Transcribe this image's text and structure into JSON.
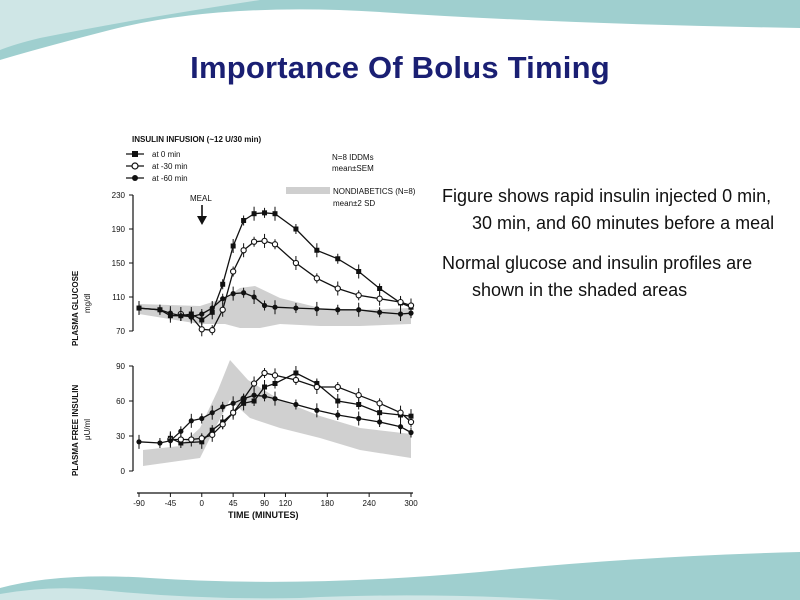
{
  "slide": {
    "title": "Importance Of Bolus Timing",
    "bullets": [
      "Figure shows rapid insulin injected 0 min, 30 min, and 60 minutes before a meal",
      "Normal glucose and insulin profiles are shown in the shaded areas"
    ],
    "colors": {
      "title": "#1a1f73",
      "band": "#9fcfcf",
      "band_light": "#cfe6e6"
    }
  },
  "chart_data": [
    {
      "type": "line",
      "panel": "top",
      "ylabel": "PLASMA GLUCOSE",
      "yunit": "mg/dl",
      "ylim": [
        70,
        230
      ],
      "yticks": [
        70,
        110,
        150,
        190,
        230
      ],
      "xlim": [
        -90,
        300
      ],
      "annotation": "MEAL",
      "legend_title": "INSULIN INFUSION (~12 U/30 min)",
      "stats_label": [
        "N=8 IDDMs",
        "mean±SEM"
      ],
      "shade_label": [
        "NONDIABETICS (N=8)",
        "mean±2 SD"
      ],
      "series": [
        {
          "name": "at 0 min",
          "marker": "square",
          "x": [
            -90,
            -60,
            -45,
            -30,
            -15,
            0,
            15,
            30,
            45,
            60,
            75,
            90,
            105,
            135,
            165,
            195,
            225,
            255,
            285,
            300
          ],
          "y": [
            97,
            95,
            88,
            88,
            90,
            83,
            92,
            125,
            170,
            200,
            208,
            209,
            208,
            190,
            165,
            155,
            140,
            120,
            103,
            98
          ]
        },
        {
          "name": "at -30 min",
          "marker": "circle",
          "x": [
            -30,
            -15,
            0,
            15,
            30,
            45,
            60,
            75,
            90,
            105,
            135,
            165,
            195,
            225,
            255,
            285,
            300
          ],
          "y": [
            90,
            87,
            72,
            71,
            95,
            140,
            165,
            175,
            176,
            172,
            150,
            132,
            120,
            112,
            108,
            104,
            100
          ]
        },
        {
          "name": "at -60 min",
          "marker": "dot",
          "x": [
            -90,
            -60,
            -45,
            -30,
            -15,
            0,
            15,
            30,
            45,
            60,
            75,
            90,
            105,
            135,
            165,
            195,
            225,
            255,
            285,
            300
          ],
          "y": [
            97,
            95,
            91,
            88,
            87,
            90,
            97,
            108,
            114,
            115,
            110,
            100,
            98,
            97,
            96,
            95,
            95,
            92,
            90,
            91
          ]
        }
      ]
    },
    {
      "type": "line",
      "panel": "bottom",
      "ylabel": "PLASMA FREE INSULIN",
      "yunit": "μU/ml",
      "ylim": [
        0,
        90
      ],
      "yticks": [
        0,
        30,
        60,
        90
      ],
      "xlabel": "TIME (MINUTES)",
      "xlim": [
        -90,
        300
      ],
      "xticks": [
        -90,
        -45,
        0,
        45,
        90,
        120,
        180,
        240,
        300
      ],
      "series": [
        {
          "name": "at 0 min",
          "marker": "square",
          "x": [
            -45,
            -30,
            0,
            15,
            30,
            45,
            60,
            75,
            90,
            105,
            135,
            165,
            195,
            225,
            255,
            285,
            300
          ],
          "y": [
            28,
            24,
            25,
            35,
            42,
            50,
            58,
            60,
            72,
            75,
            84,
            75,
            60,
            57,
            50,
            48,
            47
          ]
        },
        {
          "name": "at -30 min",
          "marker": "circle",
          "x": [
            -45,
            -30,
            -15,
            0,
            15,
            30,
            45,
            60,
            75,
            90,
            105,
            135,
            165,
            195,
            225,
            255,
            285,
            300
          ],
          "y": [
            27,
            27,
            27,
            28,
            31,
            40,
            50,
            62,
            75,
            84,
            82,
            78,
            72,
            72,
            65,
            58,
            50,
            42
          ]
        },
        {
          "name": "at -60 min",
          "marker": "dot",
          "x": [
            -90,
            -60,
            -45,
            -30,
            -15,
            0,
            15,
            30,
            45,
            60,
            75,
            90,
            105,
            135,
            165,
            195,
            225,
            255,
            285,
            300
          ],
          "y": [
            25,
            24,
            26,
            34,
            43,
            45,
            50,
            55,
            58,
            62,
            65,
            64,
            62,
            57,
            52,
            48,
            45,
            42,
            38,
            33
          ]
        }
      ]
    }
  ]
}
